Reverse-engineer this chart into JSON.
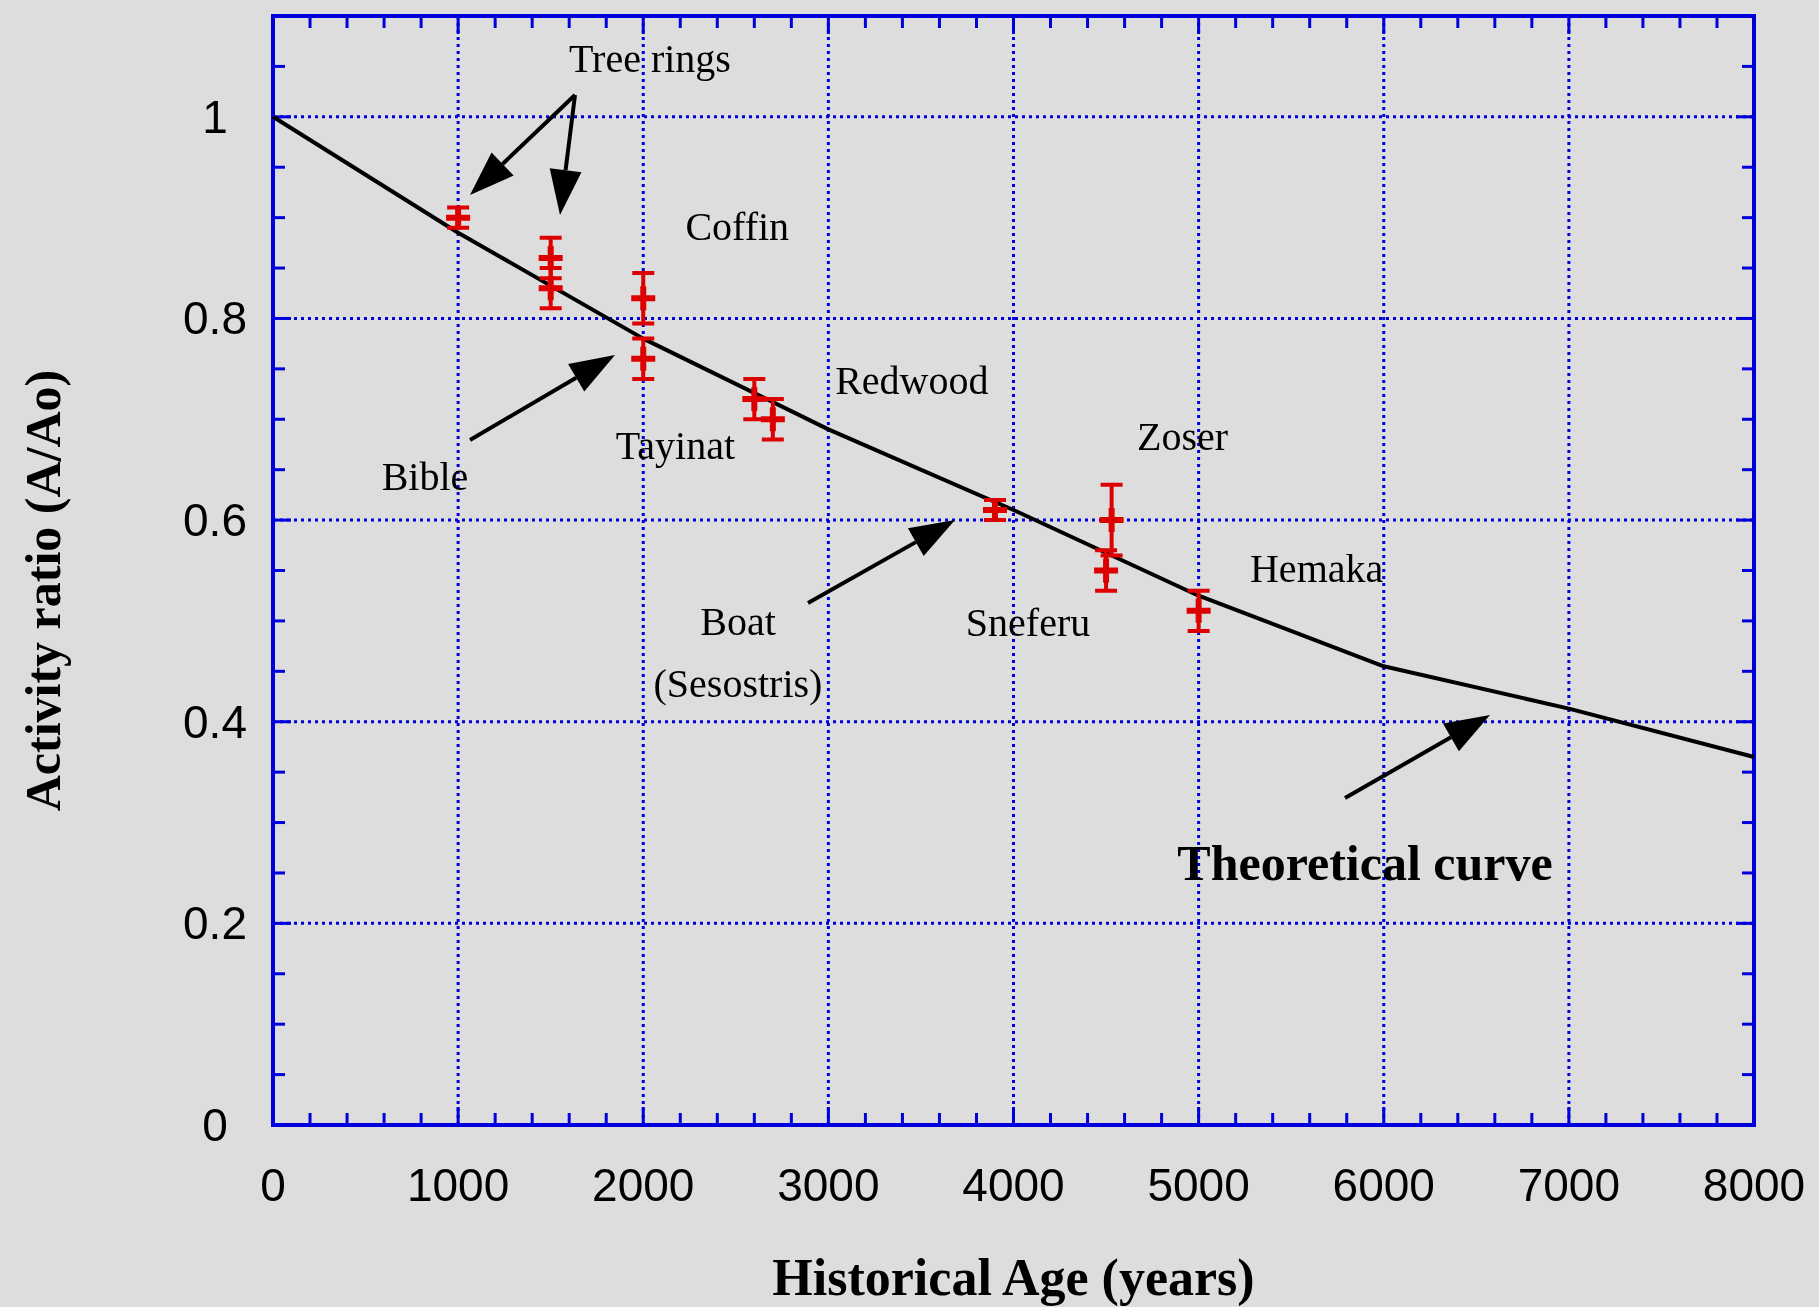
{
  "chart_data": {
    "type": "scatter",
    "xlabel": "Historical Age (years)",
    "ylabel": "Activity ratio (A/Ao)",
    "xlim": [
      0,
      8000
    ],
    "ylim": [
      0,
      1.1
    ],
    "xticks": [
      0,
      {
        "value": 200,
        "label": null
      },
      {
        "value": 400,
        "label": null
      },
      {
        "value": 600,
        "label": null
      },
      {
        "value": 800,
        "label": null
      },
      1000,
      {
        "value": 1200,
        "label": null
      },
      {
        "value": 1400,
        "label": null
      },
      {
        "value": 1600,
        "label": null
      },
      {
        "value": 1800,
        "label": null
      },
      2000,
      {
        "value": 2200,
        "label": null
      },
      {
        "value": 2400,
        "label": null
      },
      {
        "value": 2600,
        "label": null
      },
      {
        "value": 2800,
        "label": null
      },
      3000,
      {
        "value": 3200,
        "label": null
      },
      {
        "value": 3400,
        "label": null
      },
      {
        "value": 3600,
        "label": null
      },
      {
        "value": 3800,
        "label": null
      },
      4000,
      {
        "value": 4200,
        "label": null
      },
      {
        "value": 4400,
        "label": null
      },
      {
        "value": 4600,
        "label": null
      },
      {
        "value": 4800,
        "label": null
      },
      5000,
      {
        "value": 5200,
        "label": null
      },
      {
        "value": 5400,
        "label": null
      },
      {
        "value": 5600,
        "label": null
      },
      {
        "value": 5800,
        "label": null
      },
      6000,
      {
        "value": 6200,
        "label": null
      },
      {
        "value": 6400,
        "label": null
      },
      {
        "value": 6600,
        "label": null
      },
      {
        "value": 6800,
        "label": null
      },
      7000,
      {
        "value": 7200,
        "label": null
      },
      {
        "value": 7400,
        "label": null
      },
      {
        "value": 7600,
        "label": null
      },
      {
        "value": 7800,
        "label": null
      },
      8000
    ],
    "yticks": [
      0,
      {
        "value": 0.05,
        "label": null
      },
      {
        "value": 0.1,
        "label": null
      },
      {
        "value": 0.15,
        "label": null
      },
      0.2,
      {
        "value": 0.25,
        "label": null
      },
      {
        "value": 0.3,
        "label": null
      },
      {
        "value": 0.35,
        "label": null
      },
      0.4,
      {
        "value": 0.45,
        "label": null
      },
      {
        "value": 0.5,
        "label": null
      },
      {
        "value": 0.55,
        "label": null
      },
      0.6,
      {
        "value": 0.65,
        "label": null
      },
      {
        "value": 0.7,
        "label": null
      },
      {
        "value": 0.75,
        "label": null
      },
      0.8,
      {
        "value": 0.85,
        "label": null
      },
      {
        "value": 0.9,
        "label": null
      },
      {
        "value": 0.95,
        "label": null
      },
      1,
      {
        "value": 1.05,
        "label": null
      }
    ],
    "grid": true,
    "series": [
      {
        "type": "line",
        "color": "#000000",
        "x": [
          0,
          1000,
          2000,
          3000,
          4000,
          5000,
          6000,
          7000,
          8000
        ],
        "values": [
          1.0,
          0.885,
          0.78,
          0.69,
          0.61,
          0.525,
          0.455,
          0.413,
          0.365
        ]
      },
      {
        "color": "#dd0000",
        "marker": "cross",
        "x": [
          1000,
          1500,
          1500,
          2000,
          2000,
          2600,
          2700,
          3900,
          4500,
          4530,
          5000
        ],
        "values": [
          0.9,
          0.86,
          0.83,
          0.82,
          0.76,
          0.72,
          0.7,
          0.61,
          0.55,
          0.6,
          0.51
        ],
        "errors": [
          0.01,
          0.02,
          0.02,
          0.025,
          0.02,
          0.02,
          0.02,
          0.01,
          0.02,
          0.035,
          0.02
        ]
      }
    ],
    "annotations": [
      "Tree rings",
      {
        "text": "Coffin",
        "x": 2000,
        "y": 0.82
      },
      "Bible",
      {
        "text": "Tayinat",
        "x": 2600,
        "y": 0.72
      },
      {
        "text": "Redwood",
        "x": 2700,
        "y": 0.7
      },
      {
        "text": "Zoser",
        "x": 4530,
        "y": 0.6
      },
      {
        "text": "Sneferu",
        "x": 4500,
        "y": 0.55
      },
      {
        "text": "Hemaka",
        "x": 5000,
        "y": 0.51
      },
      "Boat\n(Sesostris)",
      "Theoretical curve"
    ]
  }
}
